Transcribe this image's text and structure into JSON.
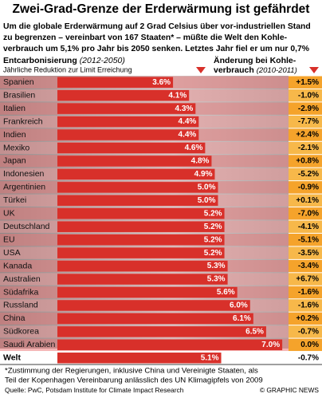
{
  "chart_data": {
    "type": "bar",
    "title": "Zwei-Grad-Grenze der Erderwärmung ist gefährdet",
    "subtitle": [
      "Um die globale Erderwärmung auf 2 Grad Celsius über vor-industriellen Stand",
      "zu begrenzen – vereinbart von 167 Staaten* – müßte die Welt den Kohle-",
      "verbrauch um 5,1% pro Jahr bis 2050 senken. Letztes Jahr fiel er um nur 0,7%"
    ],
    "left_header": "Entcarbonisierung",
    "left_period": "(2012-2050)",
    "left_sub": "Jährliche Reduktion zur Limit Erreichung",
    "right_header": [
      "Änderung bei Kohle-",
      "verbrauch"
    ],
    "right_period": "(2010-2011)",
    "categories": [
      "Spanien",
      "Brasilien",
      "Italien",
      "Frankreich",
      "Indien",
      "Mexiko",
      "Japan",
      "Indonesien",
      "Argentinien",
      "Türkei",
      "UK",
      "Deutschland",
      "EU",
      "USA",
      "Kanada",
      "Australien",
      "Südafrika",
      "Russland",
      "China",
      "Südkorea",
      "Saudi Arabien",
      "Welt"
    ],
    "values": [
      3.6,
      4.1,
      4.3,
      4.4,
      4.4,
      4.6,
      4.8,
      4.9,
      5.0,
      5.0,
      5.2,
      5.2,
      5.2,
      5.2,
      5.3,
      5.3,
      5.6,
      6.0,
      6.1,
      6.5,
      7.0,
      5.1
    ],
    "value_labels": [
      "3.6%",
      "4.1%",
      "4.3%",
      "4.4%",
      "4.4%",
      "4.6%",
      "4.8%",
      "4.9%",
      "5.0%",
      "5.0%",
      "5.2%",
      "5.2%",
      "5.2%",
      "5.2%",
      "5.3%",
      "5.3%",
      "5.6%",
      "6.0%",
      "6.1%",
      "6.5%",
      "7.0%",
      "5.1%"
    ],
    "change": [
      "+1.5%",
      "-1.0%",
      "-2.9%",
      "-7.7%",
      "+2.4%",
      "-2.1%",
      "+0.8%",
      "-5.2%",
      "-0.9%",
      "+0.1%",
      "-7.0%",
      "-4.1%",
      "-5.1%",
      "-3.5%",
      "-3.4%",
      "+6.7%",
      "-1.6%",
      "-1.6%",
      "+0.2%",
      "-0.7%",
      "0.0%",
      "-0.7%"
    ],
    "color": "#d8302a",
    "footnote": [
      "*Zustimmung der Regierungen, inklusive China und Vereinigte Staaten, als",
      "Teil der Kopenhagen Vereinbarung anlässlich des UN Klimagipfels von 2009"
    ],
    "source": "Quelle: PwC, Potsdam Institute for Climate Impact Research",
    "credit": "© GRAPHIC NEWS"
  }
}
